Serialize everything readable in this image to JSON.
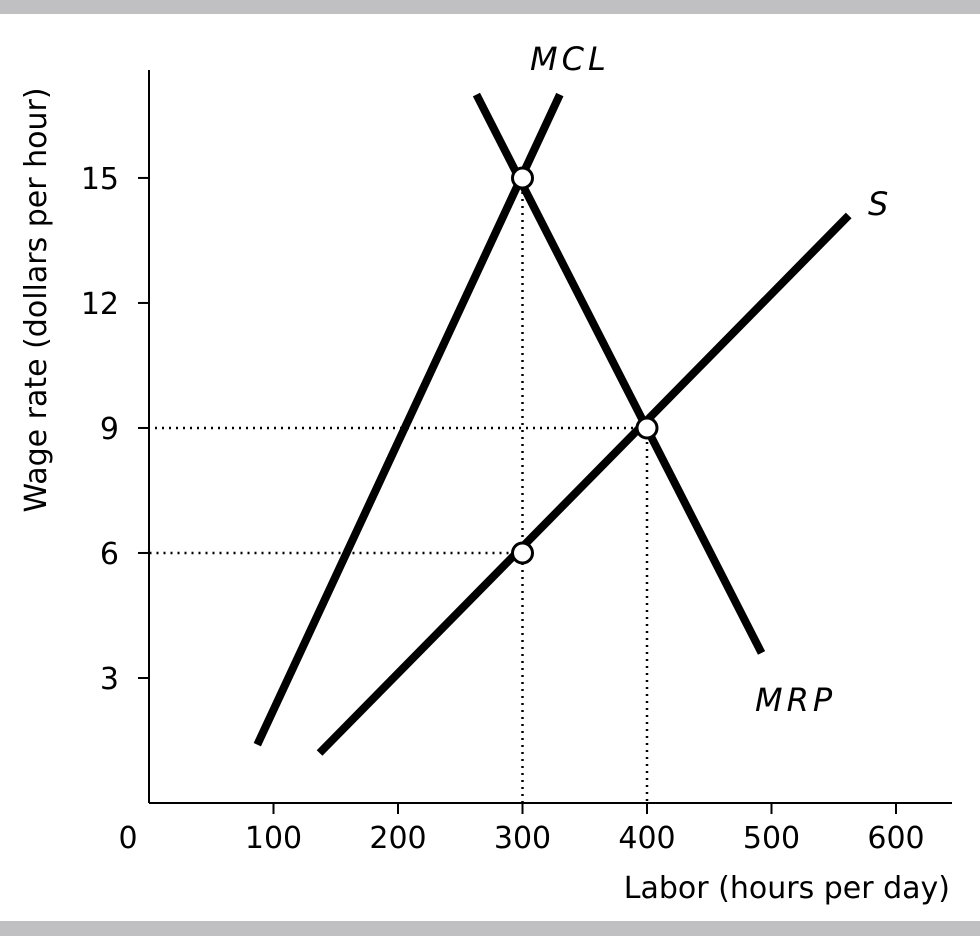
{
  "chart_data": {
    "type": "line",
    "title": "",
    "xlabel": "Labor (hours per day)",
    "ylabel": "Wage rate (dollars per hour)",
    "x_origin_label": "0",
    "xlim": [
      0,
      645
    ],
    "ylim": [
      0,
      17.8
    ],
    "xticks": [
      100,
      200,
      300,
      400,
      500,
      600
    ],
    "yticks": [
      3,
      6,
      9,
      12,
      15
    ],
    "grid": false,
    "series": [
      {
        "name": "MCL",
        "points": [
          [
            87,
            1.4
          ],
          [
            330,
            17.0
          ]
        ]
      },
      {
        "name": "MRP",
        "points": [
          [
            263,
            17.0
          ],
          [
            492,
            3.6
          ]
        ]
      },
      {
        "name": "S",
        "points": [
          [
            137,
            1.2
          ],
          [
            562,
            14.1
          ]
        ]
      }
    ],
    "highlighted_points": [
      [
        300,
        15
      ],
      [
        400,
        9
      ],
      [
        300,
        6
      ]
    ],
    "guide_lines": [
      {
        "from": [
          300,
          15
        ],
        "to": [
          300,
          0
        ]
      },
      {
        "from": [
          400,
          9
        ],
        "to": [
          400,
          0
        ]
      },
      {
        "from": [
          400,
          9
        ],
        "to": [
          0,
          9
        ]
      },
      {
        "from": [
          300,
          6
        ],
        "to": [
          0,
          6
        ]
      }
    ]
  }
}
